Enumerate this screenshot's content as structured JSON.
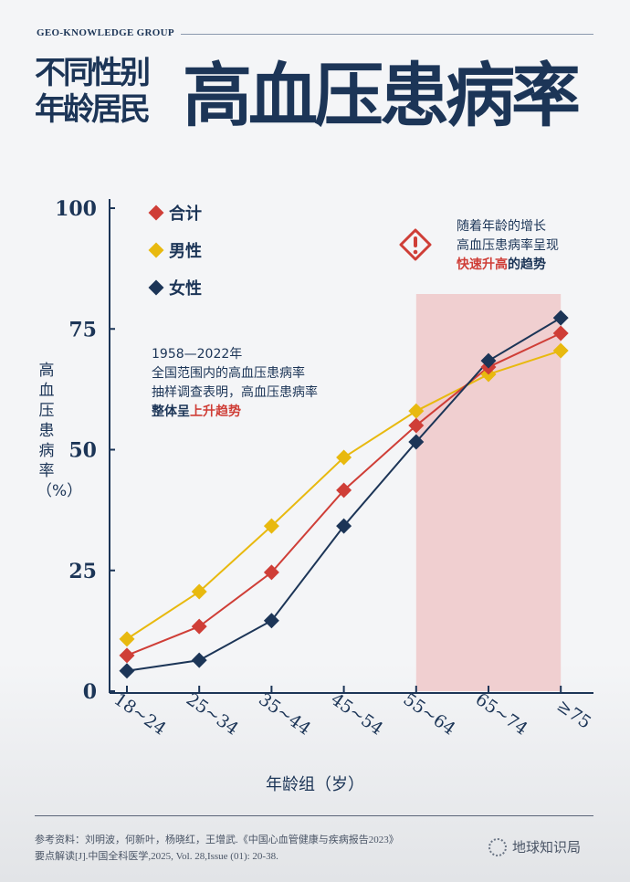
{
  "header": {
    "brand": "GEO-KNOWLEDGE GROUP",
    "title_small_1": "不同性别",
    "title_small_2": "年龄居民",
    "title_large": "高血压患病率"
  },
  "colors": {
    "total": "#cf3e37",
    "male": "#e8b90f",
    "female": "#1c3557",
    "highlight": "#f0cfd0"
  },
  "annotation": {
    "line1": "1958—2022年",
    "line2": "全国范围内的高血压患病率",
    "line3": "抽样调查表明，高血压患病率",
    "line4_a": "整体呈",
    "line4_b": "上升趋势"
  },
  "callout": {
    "icon": "warning-icon",
    "line1": "随着年龄的增长",
    "line2": "高血压患病率呈现",
    "line3_a": "快速升高",
    "line3_b": "的趋势"
  },
  "chart_data": {
    "type": "line",
    "xlabel": "年龄组（岁）",
    "ylabel": "高血压患病率（%）",
    "ylim": [
      0,
      100
    ],
    "yticks": [
      "0",
      "25",
      "50",
      "75",
      "100"
    ],
    "categories": [
      "18~24",
      "25~34",
      "35~44",
      "45~54",
      "55~64",
      "65~74",
      "≥75"
    ],
    "highlight_range": [
      "55~64",
      "≥75"
    ],
    "legend_position": "top-left",
    "grid": false,
    "series": [
      {
        "name": "合计",
        "color": "#cf3e37",
        "values": [
          7.4,
          13.4,
          24.6,
          41.6,
          55.0,
          67.1,
          74.1
        ]
      },
      {
        "name": "男性",
        "color": "#e8b90f",
        "values": [
          10.8,
          20.6,
          34.2,
          48.4,
          58.0,
          65.6,
          70.5
        ]
      },
      {
        "name": "女性",
        "color": "#1c3557",
        "values": [
          4.2,
          6.4,
          14.6,
          34.2,
          51.6,
          68.4,
          77.3
        ]
      }
    ]
  },
  "footer": {
    "ref1": "参考资料：刘明波，何新叶，杨晓红，王增武.《中国心血管健康与疾病报告2023》",
    "ref2": "要点解读[J].中国全科医学,2025, Vol. 28,Issue (01): 20-38.",
    "logo": "地球知识局"
  }
}
